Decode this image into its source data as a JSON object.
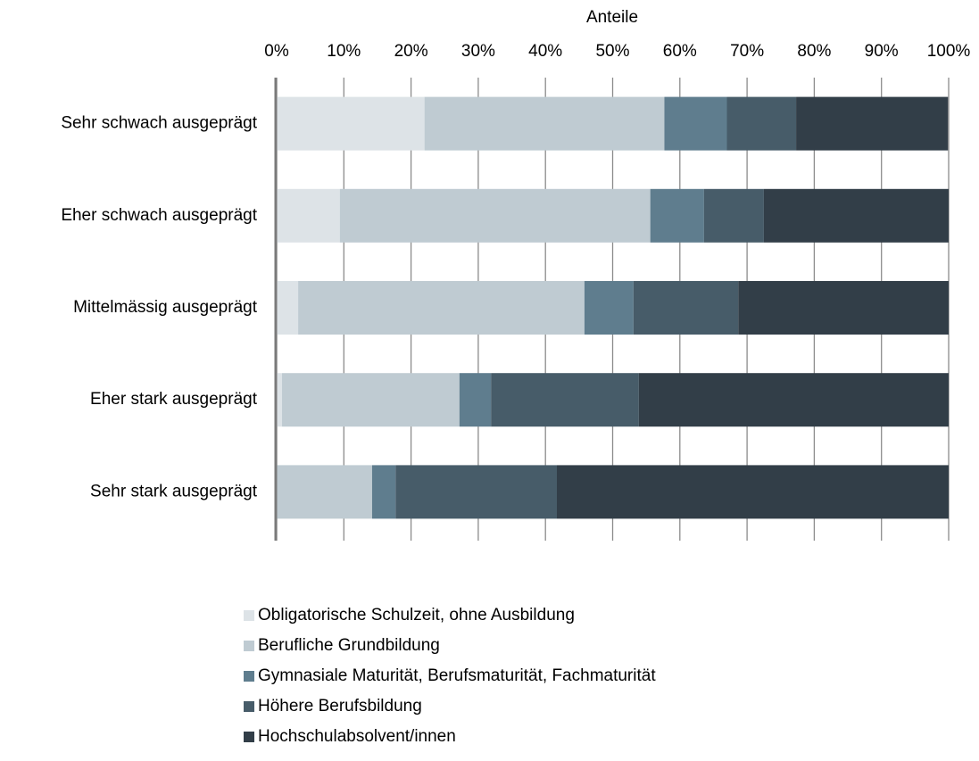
{
  "chart_data": {
    "type": "stacked-barh",
    "x_label": "Anteile",
    "categories": [
      "Sehr schwach ausgeprägt",
      "Eher schwach ausgeprägt",
      "Mittelmässig ausgeprägt",
      "Eher stark ausgeprägt",
      "Sehr stark ausgeprägt"
    ],
    "series": [
      {
        "name": "Obligatorische Schulzeit, ohne Ausbildung",
        "color": "#dde3e7",
        "values": [
          22.0,
          9.4,
          3.2,
          0.8,
          0
        ]
      },
      {
        "name": "Berufliche Grundbildung",
        "color": "#bfcbd2",
        "values": [
          35.7,
          46.2,
          42.6,
          26.4,
          14.2
        ]
      },
      {
        "name": "Gymnasiale Maturität, Berufsmaturität, Fachmaturität",
        "color": "#5f7d8e",
        "values": [
          9.3,
          8.0,
          7.3,
          4.7,
          3.5
        ]
      },
      {
        "name": "Höhere Berufsbildung",
        "color": "#475c69",
        "values": [
          10.3,
          8.9,
          15.6,
          22.0,
          24.0
        ]
      },
      {
        "name": "Hochschulabsolvent/innen",
        "color": "#323e48",
        "values": [
          22.6,
          27.5,
          31.3,
          46.1,
          58.3
        ]
      }
    ],
    "xlim": [
      0,
      100
    ],
    "xticks": [
      {
        "value": 0,
        "label": "0%"
      },
      {
        "value": 10,
        "label": "10%"
      },
      {
        "value": 20,
        "label": "20%"
      },
      {
        "value": 30,
        "label": "30%"
      },
      {
        "value": 40,
        "label": "40%"
      },
      {
        "value": 50,
        "label": "50%"
      },
      {
        "value": 60,
        "label": "60%"
      },
      {
        "value": 70,
        "label": "70%"
      },
      {
        "value": 80,
        "label": "80%"
      },
      {
        "value": 90,
        "label": "90%"
      },
      {
        "value": 100,
        "label": "100%"
      }
    ],
    "grid": true,
    "legend": "bottom"
  }
}
